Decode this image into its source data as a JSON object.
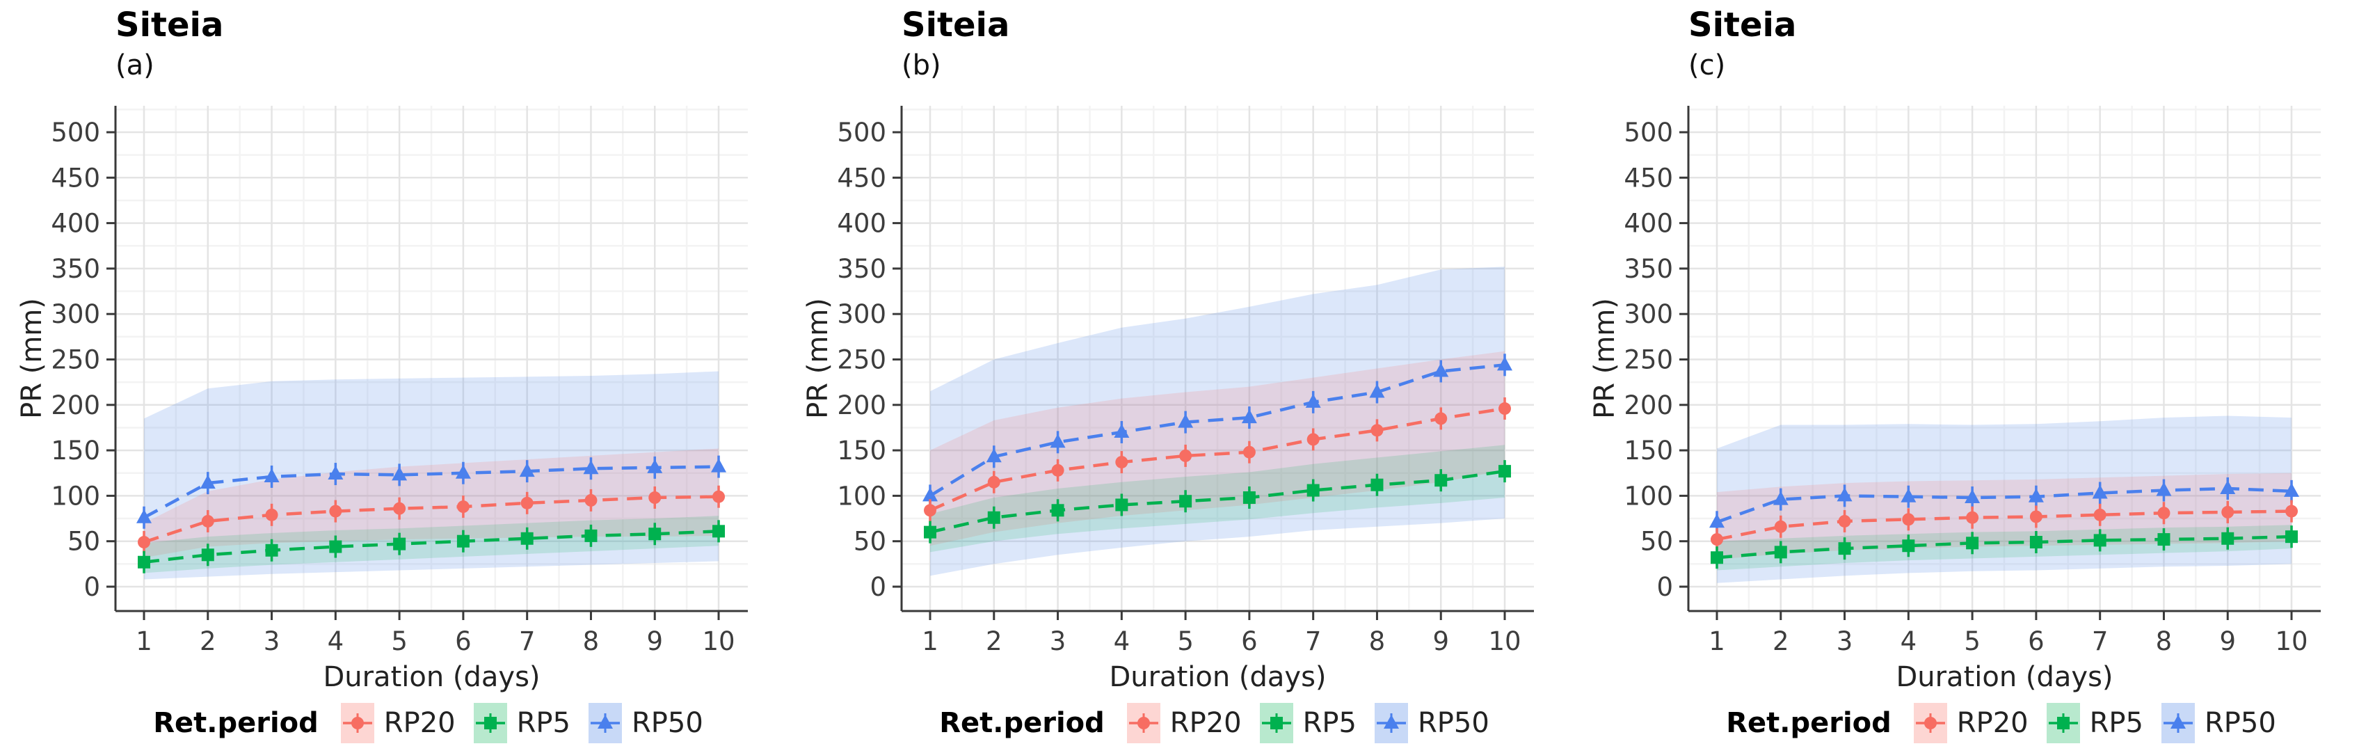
{
  "colors": {
    "RP20": "#f76d62",
    "RP5": "#00b14f",
    "RP50": "#4a80ed",
    "RP20_band": "rgba(248,118,109,0.18)",
    "RP5_band": "rgba(0,177,79,0.15)",
    "RP50_band": "rgba(110,155,235,0.24)",
    "RP20_swatch": "rgba(248,118,109,0.30)",
    "RP5_swatch": "rgba(0,177,79,0.28)",
    "RP50_swatch": "rgba(110,155,235,0.38)",
    "grid_major": "#e4e4e4",
    "grid_minor": "#f3f3f3",
    "axis_line": "#3a3a3a",
    "tick_text": "#3d3d3d",
    "title_text": "#000000"
  },
  "legend": {
    "title": "Ret.period",
    "entries": [
      {
        "label": "RP20",
        "series": "RP20"
      },
      {
        "label": "RP5",
        "series": "RP5"
      },
      {
        "label": "RP50",
        "series": "RP50"
      }
    ]
  },
  "axes": {
    "x_ticks": [
      "1",
      "2",
      "3",
      "4",
      "5",
      "6",
      "7",
      "8",
      "9",
      "10"
    ],
    "y_ticks": [
      "0",
      "50",
      "100",
      "150",
      "200",
      "250",
      "300",
      "350",
      "400",
      "450",
      "500"
    ],
    "y_major_step": 50,
    "y_minor_step": 25,
    "x_major_step": 1,
    "x_minor_step": 0.5
  },
  "chart_data": [
    {
      "type": "line",
      "title": "Siteia",
      "subtitle": "(a)",
      "xlabel": "Duration (days)",
      "ylabel": "PR (mm)",
      "xlim": [
        1,
        10
      ],
      "ylim": [
        0,
        500
      ],
      "x": [
        1,
        2,
        3,
        4,
        5,
        6,
        7,
        8,
        9,
        10
      ],
      "series": [
        {
          "name": "RP50",
          "marker": "triangle",
          "values": [
            76,
            114,
            121,
            124,
            123,
            125,
            127,
            130,
            131,
            132
          ],
          "band_low": [
            8,
            11,
            14,
            16,
            18,
            20,
            22,
            24,
            26,
            28
          ],
          "band_high": [
            185,
            218,
            226,
            228,
            229,
            230,
            231,
            232,
            234,
            237
          ]
        },
        {
          "name": "RP20",
          "marker": "circle",
          "values": [
            49,
            72,
            79,
            83,
            86,
            88,
            92,
            95,
            98,
            99
          ],
          "band_low": [
            32,
            44,
            48,
            50,
            52,
            53,
            54,
            55,
            55,
            56
          ],
          "band_high": [
            70,
            105,
            118,
            126,
            132,
            136,
            140,
            144,
            148,
            152
          ]
        },
        {
          "name": "RP5",
          "marker": "square",
          "values": [
            27,
            35,
            40,
            44,
            47,
            50,
            53,
            56,
            58,
            61
          ],
          "band_low": [
            15,
            20,
            24,
            27,
            30,
            33,
            36,
            39,
            42,
            45
          ],
          "band_high": [
            48,
            55,
            59,
            62,
            64,
            67,
            70,
            73,
            75,
            78
          ]
        }
      ]
    },
    {
      "type": "line",
      "title": "Siteia",
      "subtitle": "(b)",
      "xlabel": "Duration (days)",
      "ylabel": "PR (mm)",
      "xlim": [
        1,
        10
      ],
      "ylim": [
        0,
        500
      ],
      "x": [
        1,
        2,
        3,
        4,
        5,
        6,
        7,
        8,
        9,
        10
      ],
      "series": [
        {
          "name": "RP50",
          "marker": "triangle",
          "values": [
            100,
            143,
            159,
            170,
            181,
            186,
            203,
            214,
            237,
            244
          ],
          "band_low": [
            12,
            25,
            35,
            43,
            50,
            55,
            62,
            66,
            70,
            75
          ],
          "band_high": [
            215,
            250,
            268,
            285,
            295,
            308,
            322,
            332,
            349,
            352
          ]
        },
        {
          "name": "RP20",
          "marker": "circle",
          "values": [
            84,
            115,
            128,
            137,
            144,
            148,
            162,
            172,
            185,
            196
          ],
          "band_low": [
            45,
            60,
            70,
            78,
            84,
            90,
            98,
            106,
            115,
            128
          ],
          "band_high": [
            150,
            183,
            197,
            207,
            214,
            220,
            230,
            240,
            250,
            259
          ]
        },
        {
          "name": "RP5",
          "marker": "square",
          "values": [
            60,
            76,
            84,
            90,
            94,
            98,
            106,
            112,
            117,
            127
          ],
          "band_low": [
            38,
            50,
            58,
            64,
            69,
            74,
            81,
            87,
            92,
            98
          ],
          "band_high": [
            80,
            98,
            108,
            115,
            121,
            126,
            135,
            142,
            149,
            156
          ]
        }
      ]
    },
    {
      "type": "line",
      "title": "Siteia",
      "subtitle": "(c)",
      "xlabel": "Duration (days)",
      "ylabel": "PR (mm)",
      "xlim": [
        1,
        10
      ],
      "ylim": [
        0,
        500
      ],
      "x": [
        1,
        2,
        3,
        4,
        5,
        6,
        7,
        8,
        9,
        10
      ],
      "series": [
        {
          "name": "RP50",
          "marker": "triangle",
          "values": [
            71,
            96,
            100,
            99,
            98,
            99,
            103,
            106,
            108,
            105
          ],
          "band_low": [
            4,
            8,
            12,
            15,
            17,
            18,
            20,
            22,
            23,
            25
          ],
          "band_high": [
            152,
            178,
            178,
            179,
            178,
            179,
            182,
            186,
            188,
            186
          ]
        },
        {
          "name": "RP20",
          "marker": "circle",
          "values": [
            52,
            66,
            72,
            74,
            76,
            77,
            79,
            81,
            82,
            83
          ],
          "band_low": [
            30,
            36,
            40,
            42,
            44,
            45,
            46,
            47,
            48,
            50
          ],
          "band_high": [
            104,
            110,
            114,
            116,
            117,
            118,
            120,
            122,
            124,
            125
          ]
        },
        {
          "name": "RP5",
          "marker": "square",
          "values": [
            32,
            38,
            42,
            45,
            48,
            49,
            51,
            52,
            53,
            55
          ],
          "band_low": [
            18,
            22,
            26,
            29,
            31,
            33,
            35,
            37,
            39,
            42
          ],
          "band_high": [
            50,
            53,
            56,
            58,
            60,
            61,
            63,
            65,
            66,
            68
          ]
        }
      ]
    }
  ]
}
